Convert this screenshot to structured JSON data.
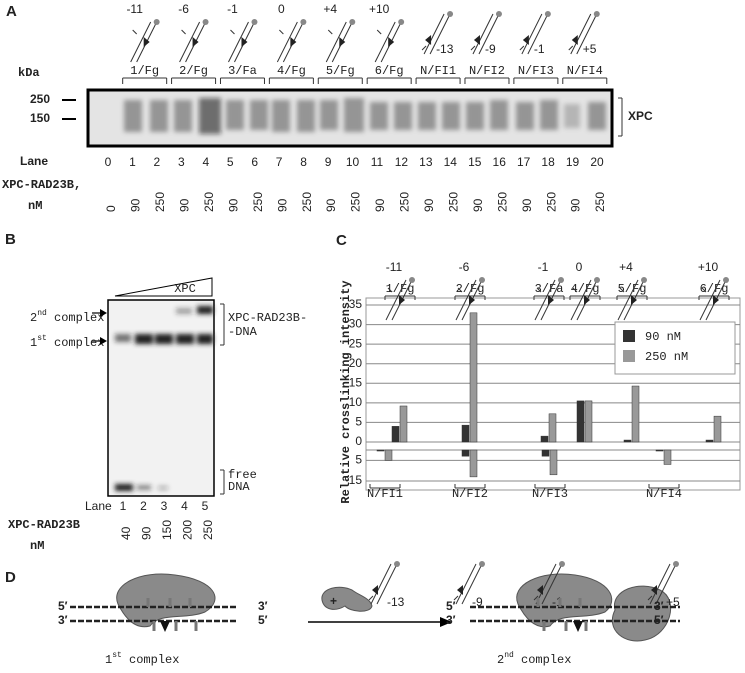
{
  "panel_a": {
    "label": "A",
    "top_positions": [
      "-11",
      "-6",
      "-1",
      "0",
      "+4",
      "+10"
    ],
    "bottom_positions": [
      "-13",
      "-9",
      "-1",
      "+5"
    ],
    "probes": [
      "1/Fg",
      "2/Fg",
      "3/Fa",
      "4/Fg",
      "5/Fg",
      "6/Fg",
      "N/FI1",
      "N/FI2",
      "N/FI3",
      "N/FI4"
    ],
    "kda_label": "kDa",
    "markers": [
      "250",
      "150"
    ],
    "band_label": "XPC",
    "lane_label": "Lane",
    "lanes": [
      "0",
      "1",
      "2",
      "3",
      "4",
      "5",
      "6",
      "7",
      "8",
      "9",
      "10",
      "11",
      "12",
      "13",
      "14",
      "15",
      "16",
      "17",
      "18",
      "19",
      "20"
    ],
    "conc_label": "XPC-RAD23B,",
    "conc_unit": "nM",
    "concentrations": [
      "0",
      "90",
      "250",
      "90",
      "250",
      "90",
      "250",
      "90",
      "250",
      "90",
      "250",
      "90",
      "250",
      "90",
      "250",
      "90",
      "250",
      "90",
      "250",
      "90",
      "250"
    ]
  },
  "panel_b": {
    "label": "B",
    "second": {
      "number": "2",
      "suffix": "nd",
      "word": "complex"
    },
    "first": {
      "number": "1",
      "suffix": "st",
      "word": "complex"
    },
    "titration_label": "XPC",
    "complex_label": [
      "XPC-RAD23B-",
      "-DNA"
    ],
    "free_label": [
      "free",
      "DNA"
    ],
    "lane_label": "Lane",
    "lanes": [
      "1",
      "2",
      "3",
      "4",
      "5"
    ],
    "conc_label": "XPC-RAD23B",
    "conc_unit": "nM",
    "concentrations": [
      "40",
      "90",
      "150",
      "200",
      "250"
    ]
  },
  "chart_data": {
    "type": "bar",
    "panel_label": "C",
    "y_label": "Relative crosslinking intensity",
    "top_positions": [
      "-11",
      "-6",
      "-1",
      "0",
      "+4",
      "+10"
    ],
    "bottom_positions": [
      "-13",
      "-9",
      "-1",
      "+5"
    ],
    "categories": [
      "1/Fg",
      "2/Fg",
      "3/Fa",
      "4/Fg",
      "5/Fg",
      "6/Fg"
    ],
    "series": [
      {
        "name": "90 nM",
        "color": "#333333",
        "values": [
          4,
          4.3,
          1.5,
          10.5,
          0.5,
          0.5
        ]
      },
      {
        "name": "250 nM",
        "color": "#999999",
        "values": [
          9.2,
          33,
          7.2,
          10.5,
          14.3,
          6.6
        ]
      }
    ],
    "ylim": [
      0,
      35
    ],
    "yticks": [
      0,
      5,
      10,
      15,
      20,
      25,
      30,
      35
    ],
    "grid": true,
    "legend": "upper right",
    "lower": {
      "categories": [
        "N/FI1",
        "N/FI2",
        "N/FI3",
        "N/FI4"
      ],
      "series": [
        {
          "values": [
            0.5,
            3,
            3,
            0.5
          ]
        },
        {
          "values": [
            5,
            13,
            12,
            7
          ]
        }
      ],
      "ylim": [
        0,
        15
      ],
      "yticks": [
        0,
        5,
        15
      ]
    }
  },
  "panel_d": {
    "label": "D",
    "ends_top": [
      "5′",
      "3′"
    ],
    "ends_bottom": [
      "3′",
      "5′"
    ],
    "plus": "+",
    "first": {
      "number": "1",
      "suffix": "st",
      "word": "complex"
    },
    "second": {
      "number": "2",
      "suffix": "nd",
      "word": "complex"
    }
  }
}
